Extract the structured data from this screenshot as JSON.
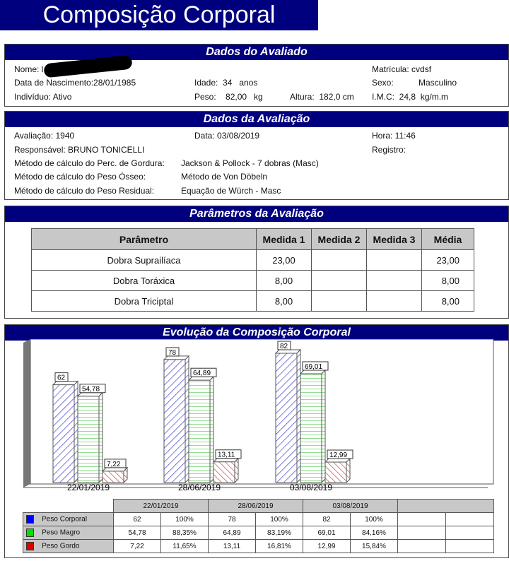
{
  "title": "Composição Corporal",
  "avaliado": {
    "header": "Dados do Avaliado",
    "nome_label": "Nome: l",
    "matricula": "Matrícula: cvdsf",
    "nascimento": "Data de Nascimento:28/01/1985",
    "idade": "Idade:  34   anos",
    "sexo_label": "Sexo:",
    "sexo": "Masculino",
    "individuo": "Indivíduo: Ativo",
    "peso": "Peso:    82,00   kg",
    "altura": "Altura:  182,0 cm",
    "imc": "I.M.C:  24,8  kg/m.m"
  },
  "avaliacao": {
    "header": "Dados da Avaliação",
    "avaliacao": "Avaliação:  1940",
    "data": "Data: 03/08/2019",
    "hora": "Hora: 11:46",
    "responsavel": "Responsável: BRUNO TONICELLI",
    "registro": "Registro:",
    "m1_label": "Método de cálculo do  Perc. de Gordura:",
    "m1": "Jackson & Pollock - 7 dobras (Masc)",
    "m2_label": "Método de cálculo do Peso Ósseo:",
    "m2": "Método de Von Döbeln",
    "m3_label": "Método de cálculo do Peso Residual:",
    "m3": "Equação de Würch - Masc"
  },
  "parametros": {
    "header": "Parâmetros da Avaliação",
    "columns": [
      "Parâmetro",
      "Medida 1",
      "Medida 2",
      "Medida 3",
      "Média"
    ],
    "rows": [
      [
        "Dobra Suprailíaca",
        "23,00",
        "",
        "",
        "23,00"
      ],
      [
        "Dobra Toráxica",
        "8,00",
        "",
        "",
        "8,00"
      ],
      [
        "Dobra Triciptal",
        "8,00",
        "",
        "",
        "8,00"
      ]
    ]
  },
  "evolucao": {
    "header": "Evolução da Composição Corporal"
  },
  "chart_data": {
    "type": "bar",
    "title": "Evolução da Composição Corporal",
    "categories": [
      "22/01/2019",
      "28/06/2019",
      "03/08/2019"
    ],
    "series": [
      {
        "name": "Peso Corporal",
        "color": "#0000ff",
        "values": [
          62,
          78,
          82
        ],
        "labels": [
          "62",
          "78",
          "82"
        ],
        "pct": [
          "100%",
          "100%",
          "100%"
        ]
      },
      {
        "name": "Peso Magro",
        "color": "#00e000",
        "values": [
          54.78,
          64.89,
          69.01
        ],
        "labels": [
          "54,78",
          "64,89",
          "69,01"
        ],
        "pct": [
          "88,35%",
          "83,19%",
          "84,16%"
        ]
      },
      {
        "name": "Peso Gordo",
        "color": "#e00000",
        "values": [
          7.22,
          13.11,
          12.99
        ],
        "labels": [
          "7,22",
          "13,11",
          "12,99"
        ],
        "pct": [
          "11,65%",
          "16,81%",
          "15,84%"
        ]
      }
    ],
    "ylim": [
      0,
      85
    ]
  }
}
